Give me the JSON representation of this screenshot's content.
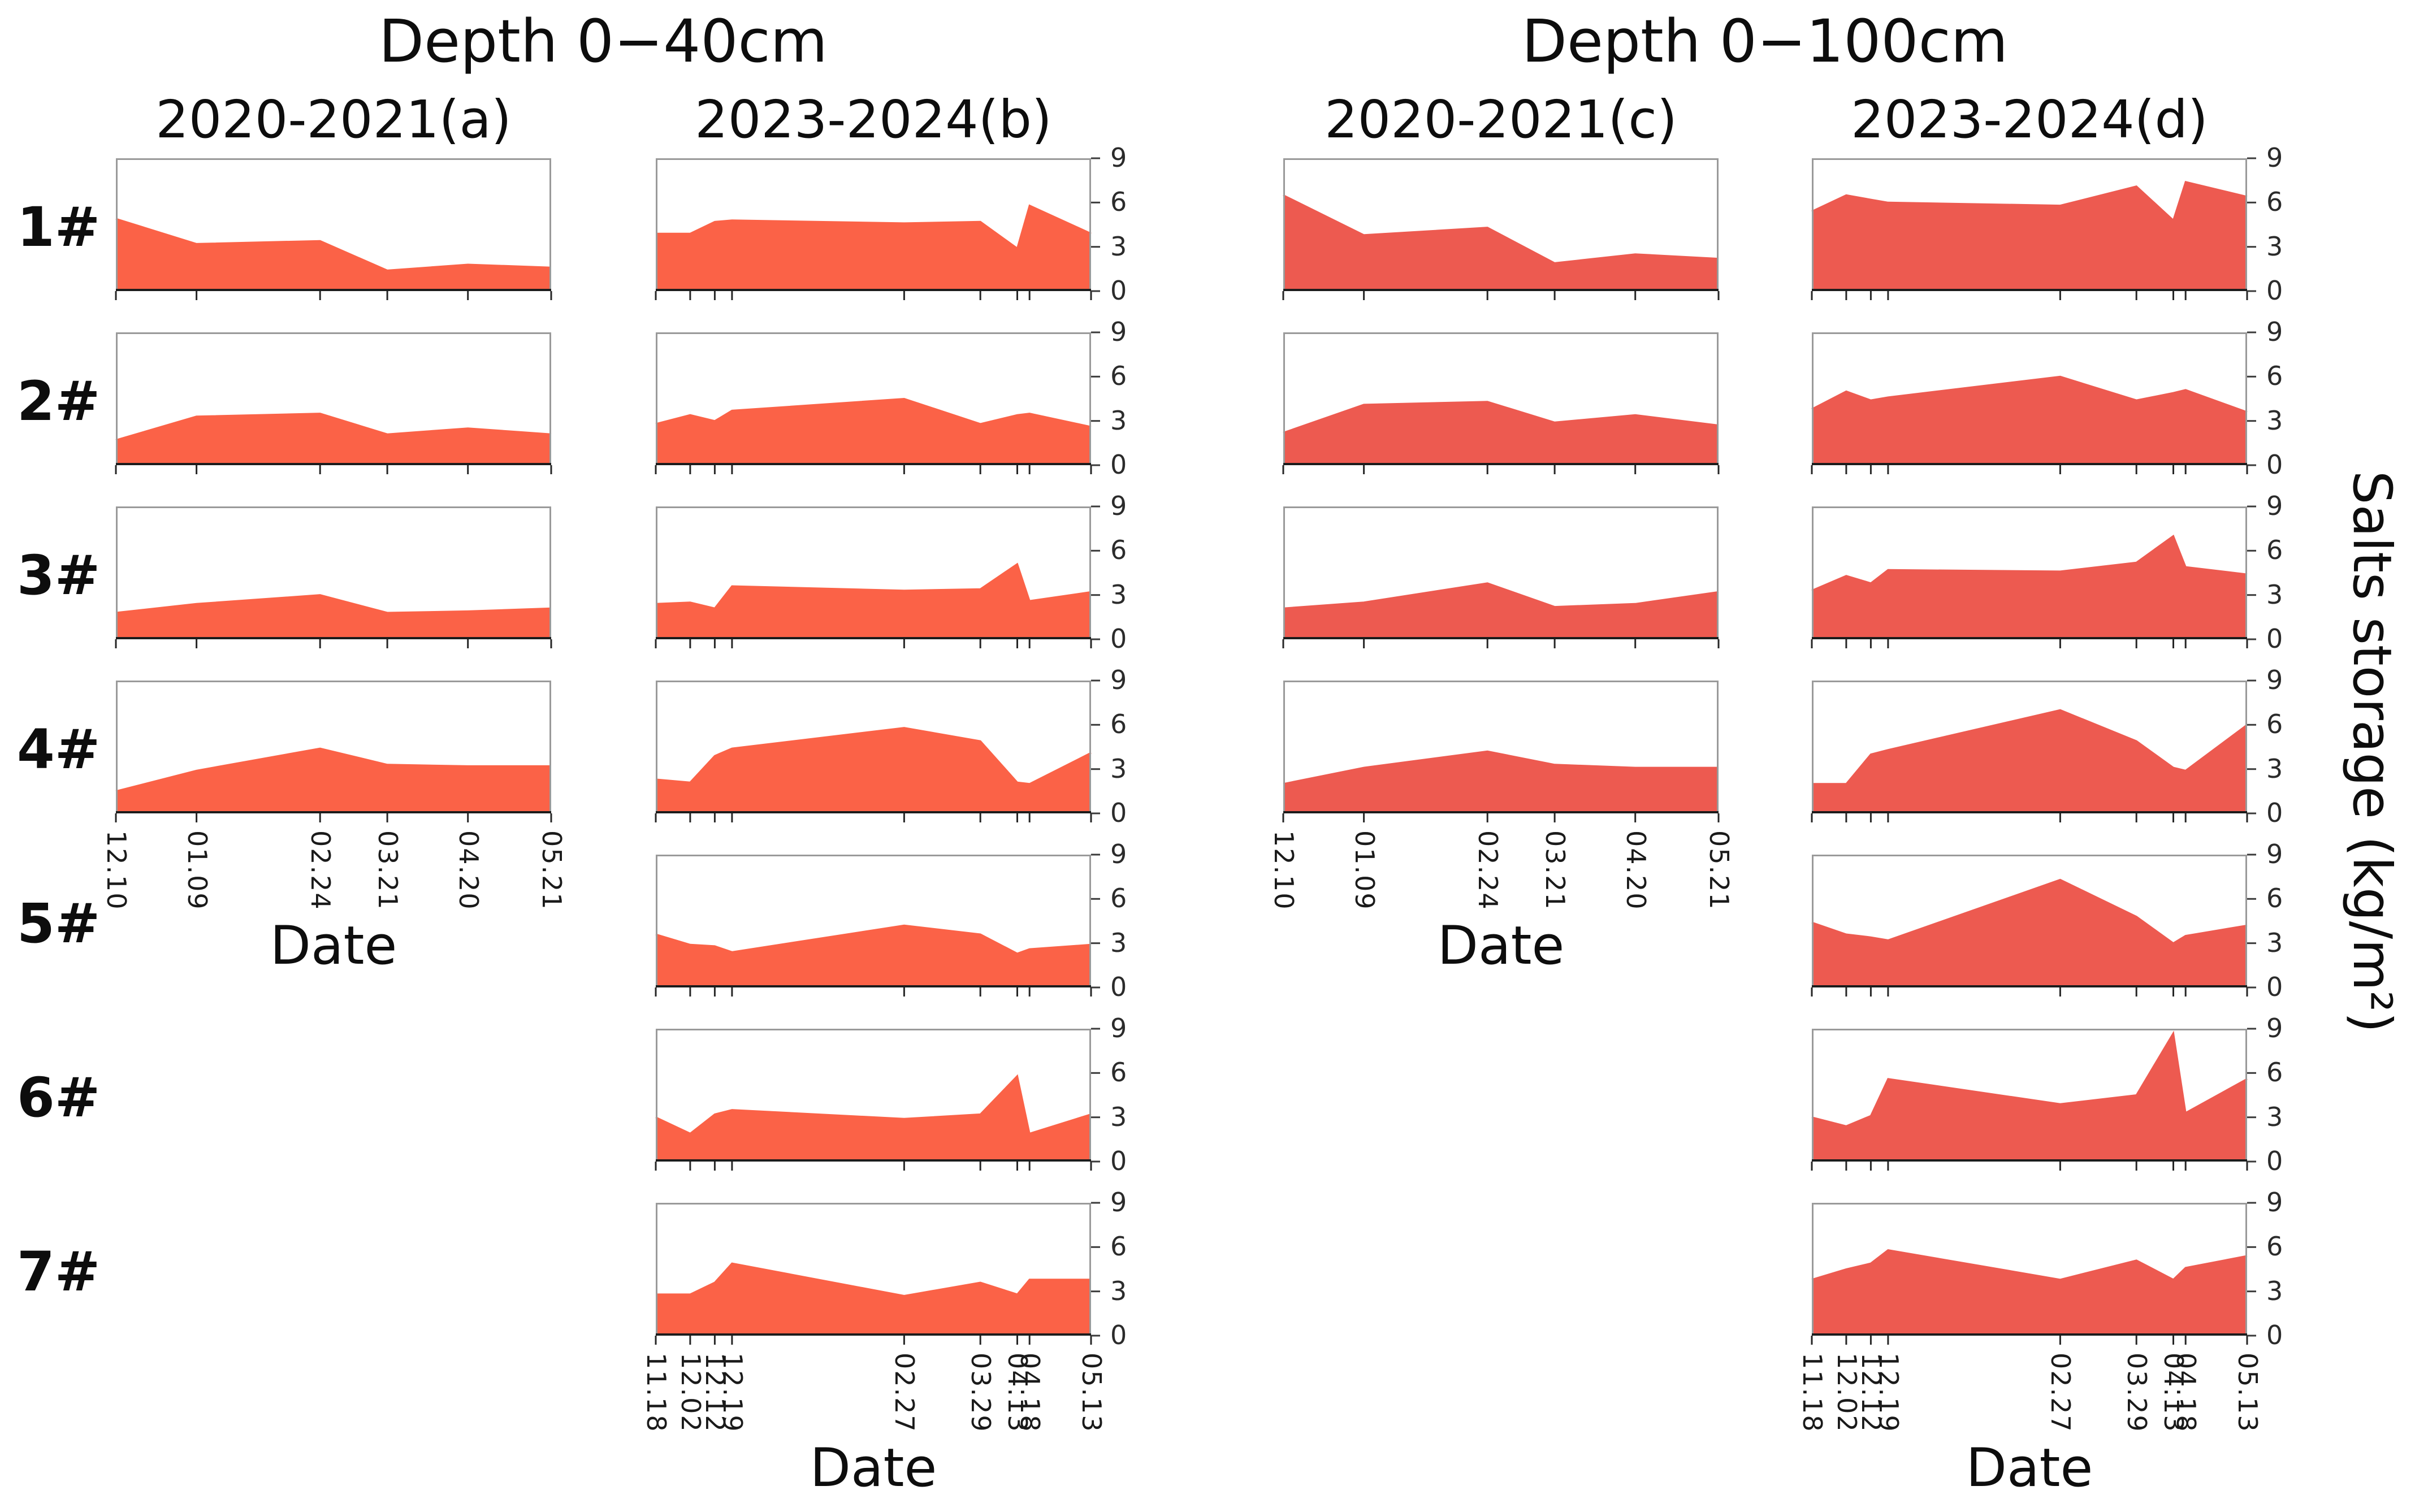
{
  "figure": {
    "background": "#ffffff",
    "text_color": "#111111"
  },
  "chart_data": {
    "type": "area",
    "ylabel": "Salts storage (kg/m²)",
    "xlabel": "Date",
    "ylim": [
      0,
      9
    ],
    "yticks": [
      0,
      3,
      6,
      9
    ],
    "grid": false,
    "row_labels": [
      "1#",
      "2#",
      "3#",
      "4#",
      "5#",
      "6#",
      "7#"
    ],
    "depth_titles": [
      {
        "label": "Depth 0−40cm"
      },
      {
        "label": "Depth 0−100cm"
      }
    ],
    "x_groups": {
      "g1": {
        "period": "2020-2021",
        "tick_labels": [
          "12.10",
          "01.09",
          "02.24",
          "03.21",
          "04.20",
          "05.21"
        ],
        "day_offsets": [
          0,
          30,
          76,
          101,
          131,
          162
        ],
        "total_days": 162
      },
      "g2": {
        "period": "2023-2024",
        "tick_labels": [
          "11.18",
          "12.02",
          "12.12",
          "12.19",
          "02.27",
          "03.29",
          "04.13",
          "04.18",
          "05.13"
        ],
        "day_offsets": [
          0,
          14,
          24,
          31,
          101,
          132,
          147,
          152,
          177
        ],
        "total_days": 177
      }
    },
    "columns": [
      {
        "id": "a",
        "header": "2020-2021(a)",
        "depth": "0-40cm",
        "x_group": "g1",
        "color": "#FB6247",
        "series": [
          {
            "row": "1#",
            "values": [
              4.9,
              3.2,
              3.4,
              1.4,
              1.8,
              1.6
            ]
          },
          {
            "row": "2#",
            "values": [
              1.7,
              3.3,
              3.5,
              2.1,
              2.5,
              2.1
            ]
          },
          {
            "row": "3#",
            "values": [
              1.8,
              2.4,
              3.0,
              1.8,
              1.9,
              2.1
            ]
          },
          {
            "row": "4#",
            "values": [
              1.5,
              2.9,
              4.4,
              3.3,
              3.2,
              3.2
            ]
          }
        ]
      },
      {
        "id": "b",
        "header": "2023-2024(b)",
        "depth": "0-40cm",
        "x_group": "g2",
        "color": "#FB6247",
        "series": [
          {
            "row": "1#",
            "values": [
              3.9,
              3.9,
              4.7,
              4.8,
              4.6,
              4.7,
              2.9,
              5.8,
              3.9
            ]
          },
          {
            "row": "2#",
            "values": [
              2.8,
              3.4,
              3.0,
              3.7,
              4.5,
              2.8,
              3.4,
              3.5,
              2.6
            ]
          },
          {
            "row": "3#",
            "values": [
              2.4,
              2.5,
              2.1,
              3.6,
              3.3,
              3.4,
              5.1,
              2.6,
              3.2
            ]
          },
          {
            "row": "4#",
            "values": [
              2.3,
              2.1,
              3.9,
              4.4,
              5.8,
              4.9,
              2.1,
              2.0,
              4.1
            ]
          },
          {
            "row": "5#",
            "values": [
              3.6,
              2.9,
              2.8,
              2.4,
              4.2,
              3.6,
              2.3,
              2.6,
              2.9
            ]
          },
          {
            "row": "6#",
            "values": [
              3.0,
              1.9,
              3.2,
              3.5,
              2.9,
              3.2,
              5.8,
              1.9,
              3.2
            ]
          },
          {
            "row": "7#",
            "values": [
              2.8,
              2.8,
              3.6,
              4.9,
              2.7,
              3.6,
              2.8,
              3.8,
              3.8
            ]
          }
        ]
      },
      {
        "id": "c",
        "header": "2020-2021(c)",
        "depth": "0-100cm",
        "x_group": "g1",
        "color": "#ED5A50",
        "series": [
          {
            "row": "1#",
            "values": [
              6.5,
              3.8,
              4.3,
              1.9,
              2.5,
              2.2
            ]
          },
          {
            "row": "2#",
            "values": [
              2.2,
              4.1,
              4.3,
              2.9,
              3.4,
              2.7
            ]
          },
          {
            "row": "3#",
            "values": [
              2.1,
              2.5,
              3.8,
              2.2,
              2.4,
              3.2
            ]
          },
          {
            "row": "4#",
            "values": [
              2.0,
              3.1,
              4.2,
              3.3,
              3.1,
              3.1
            ]
          }
        ]
      },
      {
        "id": "d",
        "header": "2023-2024(d)",
        "depth": "0-100cm",
        "x_group": "g2",
        "color": "#ED5A50",
        "series": [
          {
            "row": "1#",
            "values": [
              5.4,
              6.5,
              6.2,
              6.0,
              5.8,
              7.1,
              4.8,
              7.4,
              6.4
            ]
          },
          {
            "row": "2#",
            "values": [
              3.8,
              5.0,
              4.4,
              4.6,
              6.0,
              4.4,
              4.9,
              5.1,
              3.6
            ]
          },
          {
            "row": "3#",
            "values": [
              3.3,
              4.3,
              3.8,
              4.7,
              4.6,
              5.2,
              7.0,
              4.9,
              4.4
            ]
          },
          {
            "row": "4#",
            "values": [
              2.0,
              2.0,
              4.0,
              4.3,
              7.0,
              4.9,
              3.1,
              2.9,
              6.0
            ]
          },
          {
            "row": "5#",
            "values": [
              4.4,
              3.6,
              3.4,
              3.2,
              7.3,
              4.8,
              3.0,
              3.5,
              4.2
            ]
          },
          {
            "row": "6#",
            "values": [
              3.0,
              2.4,
              3.1,
              5.6,
              3.9,
              4.5,
              8.7,
              3.3,
              5.6
            ]
          },
          {
            "row": "7#",
            "values": [
              3.8,
              4.5,
              4.9,
              5.8,
              3.8,
              5.1,
              3.8,
              4.6,
              5.4
            ]
          }
        ]
      }
    ]
  }
}
